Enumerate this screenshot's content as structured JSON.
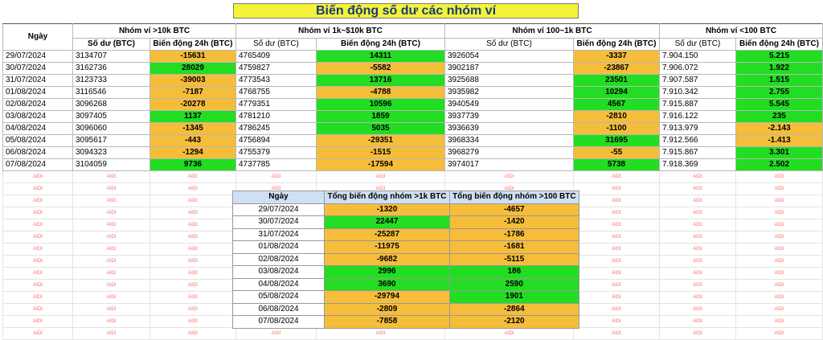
{
  "title": "Biến động số dư các nhóm ví",
  "header": {
    "date_col": "Ngày",
    "groups": [
      "Nhóm ví >10k BTC",
      "Nhóm ví 1k~$10k BTC",
      "Nhóm ví 100~1k BTC",
      "Nhóm ví <100 BTC"
    ],
    "balance_col": "Số dư  (BTC)",
    "change_col": "Biến động 24h (BTC)"
  },
  "rows": [
    {
      "date": "29/07/2024",
      "b1": "3134707",
      "c1": "-15631",
      "b2": "4765409",
      "c2": "14311",
      "b3": "3926054",
      "c3": "-3337",
      "b4": "7.904.150",
      "c4": "5.215"
    },
    {
      "date": "30/07/2024",
      "b1": "3162736",
      "c1": "28029",
      "b2": "4759827",
      "c2": "-5582",
      "b3": "3902187",
      "c3": "-23867",
      "b4": "7.906.072",
      "c4": "1.922"
    },
    {
      "date": "31/07/2024",
      "b1": "3123733",
      "c1": "-39003",
      "b2": "4773543",
      "c2": "13716",
      "b3": "3925688",
      "c3": "23501",
      "b4": "7.907.587",
      "c4": "1.515"
    },
    {
      "date": "01/08/2024",
      "b1": "3116546",
      "c1": "-7187",
      "b2": "4768755",
      "c2": "-4788",
      "b3": "3935982",
      "c3": "10294",
      "b4": "7.910.342",
      "c4": "2.755"
    },
    {
      "date": "02/08/2024",
      "b1": "3096268",
      "c1": "-20278",
      "b2": "4779351",
      "c2": "10596",
      "b3": "3940549",
      "c3": "4567",
      "b4": "7.915.887",
      "c4": "5.545"
    },
    {
      "date": "03/08/2024",
      "b1": "3097405",
      "c1": "1137",
      "b2": "4781210",
      "c2": "1859",
      "b3": "3937739",
      "c3": "-2810",
      "b4": "7.916.122",
      "c4": "235"
    },
    {
      "date": "04/08/2024",
      "b1": "3096060",
      "c1": "-1345",
      "b2": "4786245",
      "c2": "5035",
      "b3": "3936639",
      "c3": "-1100",
      "b4": "7.913.979",
      "c4": "-2.143"
    },
    {
      "date": "05/08/2024",
      "b1": "3095617",
      "c1": "-443",
      "b2": "4756894",
      "c2": "-29351",
      "b3": "3968334",
      "c3": "31695",
      "b4": "7.912.566",
      "c4": "-1.413"
    },
    {
      "date": "06/08/2024",
      "b1": "3094323",
      "c1": "-1294",
      "b2": "4755379",
      "c2": "-1515",
      "b3": "3968279",
      "c3": "-55",
      "b4": "7.915.867",
      "c4": "3.301"
    },
    {
      "date": "07/08/2024",
      "b1": "3104059",
      "c1": "9736",
      "b2": "4737785",
      "c2": "-17594",
      "b3": "3974017",
      "c3": "5738",
      "b4": "7.918.369",
      "c4": "2.502"
    }
  ],
  "watermark": "AIDI",
  "summary": {
    "date_col": "Ngày",
    "col1": "Tổng biến động nhóm >1k BTC",
    "col2": "Tổng biến động nhóm >100 BTC",
    "rows": [
      {
        "date": "29/07/2024",
        "v1": "-1320",
        "v2": "-4657"
      },
      {
        "date": "30/07/2024",
        "v1": "22447",
        "v2": "-1420"
      },
      {
        "date": "31/07/2024",
        "v1": "-25287",
        "v2": "-1786"
      },
      {
        "date": "01/08/2024",
        "v1": "-11975",
        "v2": "-1681"
      },
      {
        "date": "02/08/2024",
        "v1": "-9682",
        "v2": "-5115"
      },
      {
        "date": "03/08/2024",
        "v1": "2996",
        "v2": "186"
      },
      {
        "date": "04/08/2024",
        "v1": "3690",
        "v2": "2590"
      },
      {
        "date": "05/08/2024",
        "v1": "-29794",
        "v2": "1901"
      },
      {
        "date": "06/08/2024",
        "v1": "-2809",
        "v2": "-2864"
      },
      {
        "date": "07/08/2024",
        "v1": "-7858",
        "v2": "-2120"
      }
    ]
  },
  "colors": {
    "positive": "#22dd22",
    "negative": "#f5bd3a",
    "title_bg": "#f3f33a",
    "summary_header": "#cfe0f5"
  }
}
